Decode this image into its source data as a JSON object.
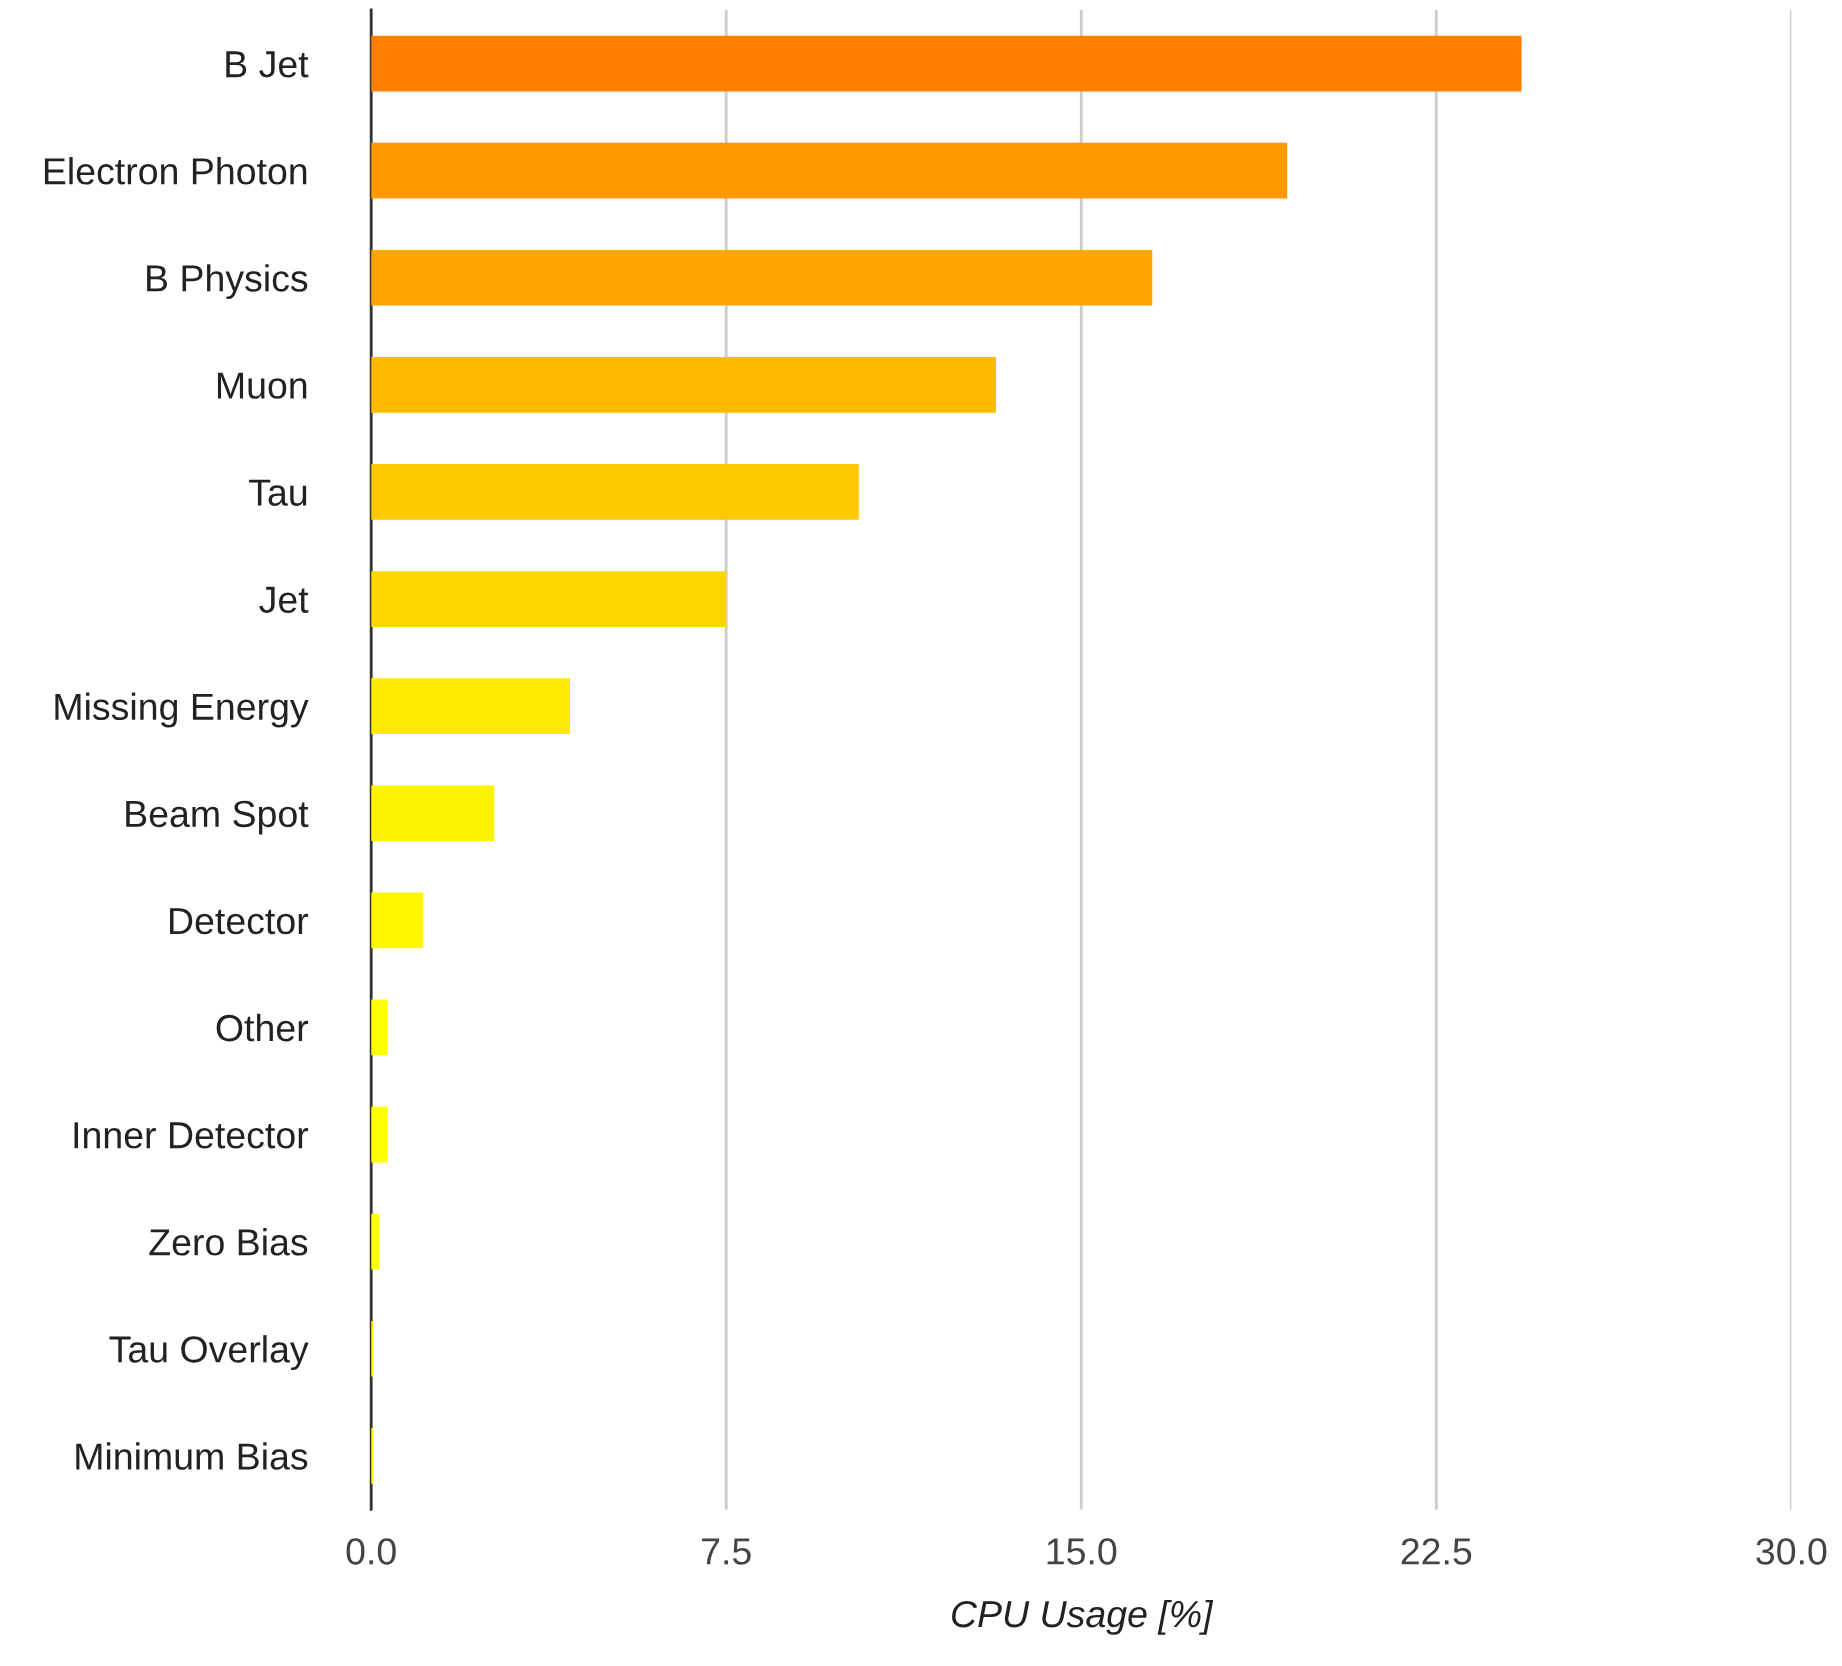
{
  "chart_data": {
    "type": "bar",
    "orientation": "horizontal",
    "xlabel": "CPU Usage [%]",
    "categories": [
      "B Jet",
      "Electron Photon",
      "B Physics",
      "Muon",
      "Tau",
      "Jet",
      "Missing Energy",
      "Beam Spot",
      "Detector",
      "Other",
      "Inner Detector",
      "Zero Bias",
      "Tau Overlay",
      "Minimum Bias"
    ],
    "values": [
      24.3,
      19.35,
      16.5,
      13.2,
      10.3,
      7.5,
      4.2,
      2.6,
      1.1,
      0.35,
      0.35,
      0.17,
      0.05,
      0.05
    ],
    "colors": [
      "#ff8000",
      "#ff9900",
      "#ffa500",
      "#ffbb00",
      "#ffc800",
      "#ffd700",
      "#ffea00",
      "#fff200",
      "#fff700",
      "#ffff00",
      "#ffff00",
      "#ffff00",
      "#ffff00",
      "#ffff00"
    ],
    "xlim": [
      0,
      30
    ],
    "xticks": [
      {
        "value": 0,
        "label": "0.0"
      },
      {
        "value": 7.5,
        "label": "7.5"
      },
      {
        "value": 15,
        "label": "15.0"
      },
      {
        "value": 22.5,
        "label": "22.5"
      },
      {
        "value": 30,
        "label": "30.0"
      }
    ],
    "grid": "x"
  }
}
